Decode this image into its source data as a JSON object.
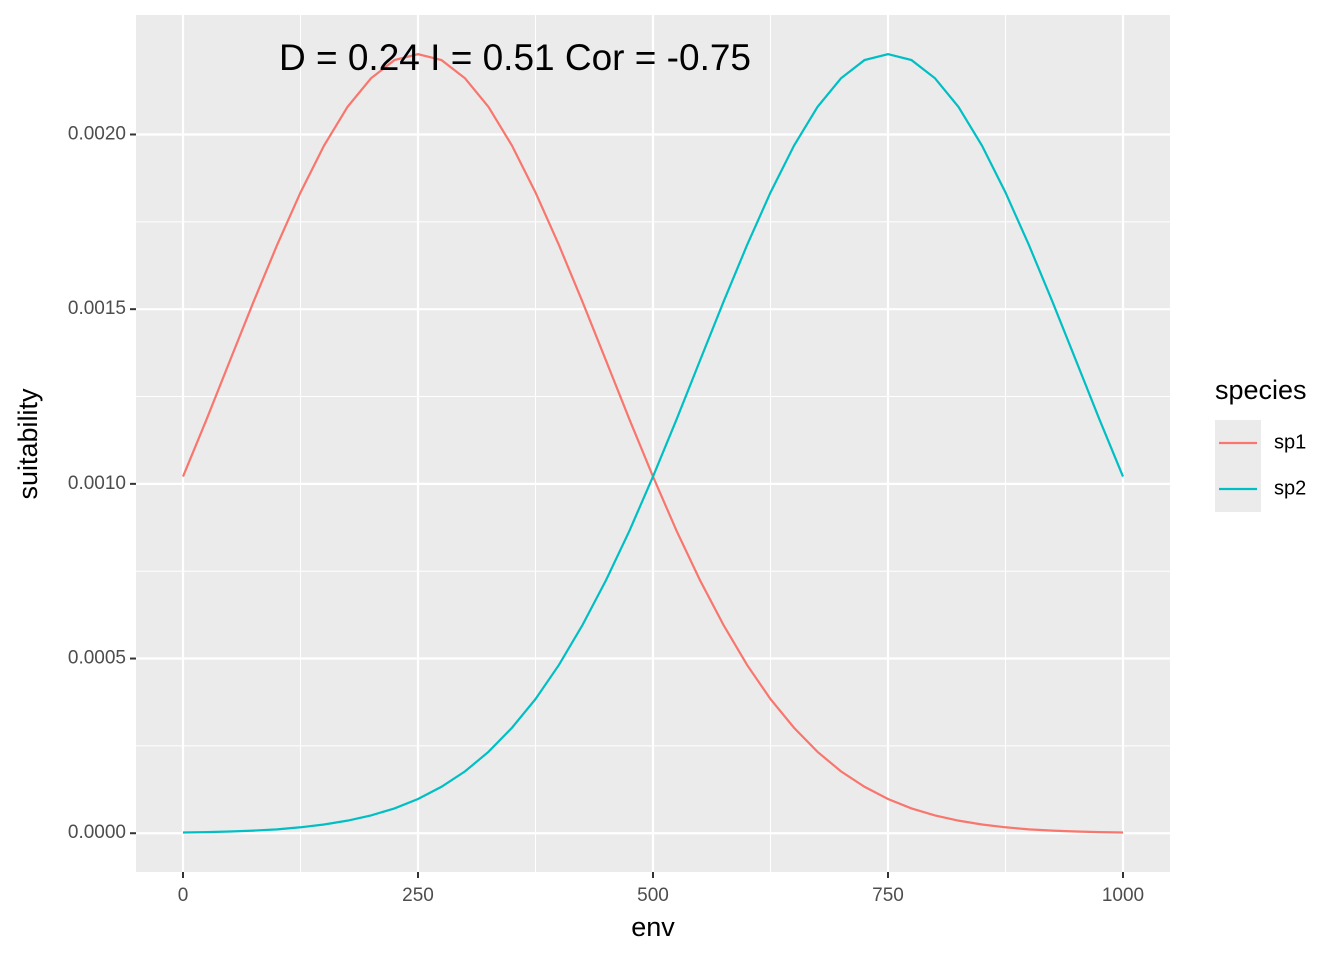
{
  "chart_data": {
    "type": "line",
    "annotation": "D = 0.24   I = 0.51   Cor = -0.75",
    "x_label": "env",
    "y_label": "suitability",
    "legend_title": "species",
    "x": [
      0,
      25,
      50,
      75,
      100,
      125,
      150,
      175,
      200,
      225,
      250,
      275,
      300,
      325,
      350,
      375,
      400,
      425,
      450,
      475,
      500,
      525,
      550,
      575,
      600,
      625,
      650,
      675,
      700,
      725,
      750,
      775,
      800,
      825,
      850,
      875,
      900,
      925,
      950,
      975,
      1000
    ],
    "series": [
      {
        "name": "sp1",
        "color": "#F8766D",
        "values": [
          0.001021,
          0.001184,
          0.001353,
          0.001521,
          0.001683,
          0.001834,
          0.001968,
          0.002079,
          0.002161,
          0.002213,
          0.00223,
          0.002213,
          0.002161,
          0.002079,
          0.001968,
          0.001834,
          0.001683,
          0.001521,
          0.001353,
          0.001184,
          0.001021,
          0.000866,
          0.000724,
          0.000596,
          0.000482,
          0.000384,
          0.000302,
          0.000233,
          0.000177,
          0.000133,
          9.8e-05,
          7.1e-05,
          5.1e-05,
          3.6e-05,
          2.5e-05,
          1.7e-05,
          1.1e-05,
          7.5e-06,
          4.9e-06,
          3.1e-06,
          2e-06
        ]
      },
      {
        "name": "sp2",
        "color": "#00BFC4",
        "values": [
          2e-06,
          3.1e-06,
          4.9e-06,
          7.5e-06,
          1.1e-05,
          1.7e-05,
          2.5e-05,
          3.6e-05,
          5.1e-05,
          7.1e-05,
          9.8e-05,
          0.000133,
          0.000177,
          0.000233,
          0.000302,
          0.000384,
          0.000482,
          0.000596,
          0.000724,
          0.000866,
          0.001021,
          0.001184,
          0.001353,
          0.001521,
          0.001683,
          0.001834,
          0.001968,
          0.002079,
          0.002161,
          0.002213,
          0.00223,
          0.002213,
          0.002161,
          0.002079,
          0.001968,
          0.001834,
          0.001683,
          0.001521,
          0.001353,
          0.001184,
          0.001021
        ]
      }
    ],
    "xlim": [
      -50,
      1050
    ],
    "xticks": [
      0,
      250,
      500,
      750,
      1000
    ],
    "ylim": [
      -0.000111,
      0.002342
    ],
    "yticks": [
      {
        "value": 0,
        "label": "0.0000"
      },
      0.0005,
      {
        "value": 0.001,
        "label": "0.0010"
      },
      0.0015,
      {
        "value": 0.002,
        "label": "0.0020"
      }
    ],
    "grid": true
  }
}
